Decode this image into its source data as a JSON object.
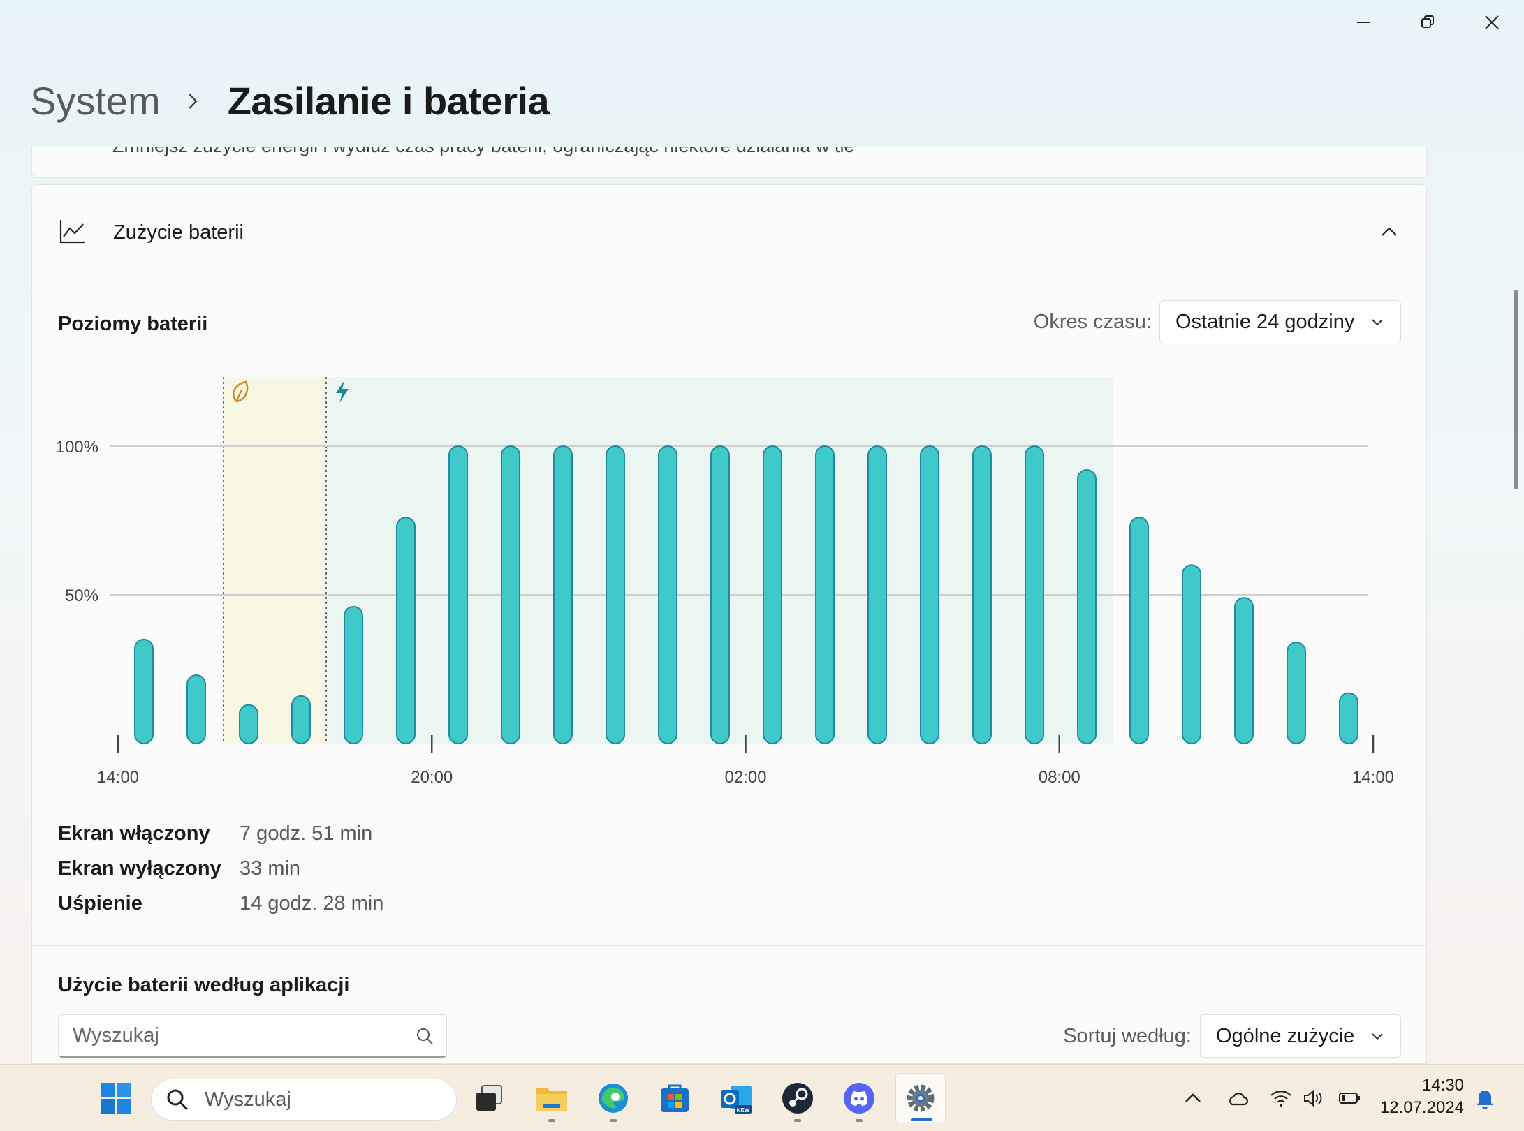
{
  "window": {
    "minimize_icon": "minimize-icon",
    "maximize_icon": "restore-icon",
    "close_icon": "close-icon"
  },
  "breadcrumb": {
    "parent": "System",
    "current": "Zasilanie i bateria"
  },
  "top_card": {
    "description": "Zmniejsz zużycie energii i wydłuż czas pracy baterii, ograniczając niektóre działania w tle"
  },
  "battery_usage": {
    "title": "Zużycie baterii",
    "levels_title": "Poziomy baterii",
    "period_label": "Okres czasu:",
    "period_value": "Ostatnie 24 godziny"
  },
  "chart_data": {
    "type": "bar",
    "ylim": [
      0,
      100
    ],
    "yticks": [
      "100%",
      "50%"
    ],
    "xticks": [
      "14:00",
      "20:00",
      "02:00",
      "08:00",
      "14:00"
    ],
    "values": [
      35,
      23,
      13,
      16,
      46,
      76,
      100,
      100,
      100,
      100,
      100,
      100,
      100,
      100,
      100,
      100,
      100,
      100,
      92,
      76,
      60,
      49,
      34,
      17
    ],
    "grid": true,
    "colors": {
      "bar": "#3fc9c9",
      "bar_stroke": "#1f8aa0",
      "saver_region": "#f7f7e4",
      "charging_region": "#ebf5f2",
      "saver_icon": "#d08a2a",
      "charge_icon": "#1a8a9a"
    },
    "annotations": [
      {
        "icon": "battery-saver-leaf-icon",
        "from_bar": 2,
        "to_bar": 3
      },
      {
        "icon": "charging-bolt-icon",
        "from_bar": 4,
        "to_bar": 18
      }
    ]
  },
  "stats": [
    {
      "label": "Ekran włączony",
      "value": "7 godz. 51 min"
    },
    {
      "label": "Ekran wyłączony",
      "value": "33 min"
    },
    {
      "label": "Uśpienie",
      "value": "14 godz. 28 min"
    }
  ],
  "apps": {
    "title": "Użycie baterii według aplikacji",
    "search_placeholder": "Wyszukaj",
    "sort_label": "Sortuj według:",
    "sort_value": "Ogólne zużycie"
  },
  "taskbar": {
    "search_placeholder": "Wyszukaj",
    "apps": [
      "windows-start-icon",
      "task-view-icon",
      "file-explorer-icon",
      "edge-icon",
      "store-icon",
      "outlook-icon",
      "steam-icon",
      "discord-icon",
      "settings-icon"
    ],
    "time": "14:30",
    "date": "12.07.2024"
  }
}
